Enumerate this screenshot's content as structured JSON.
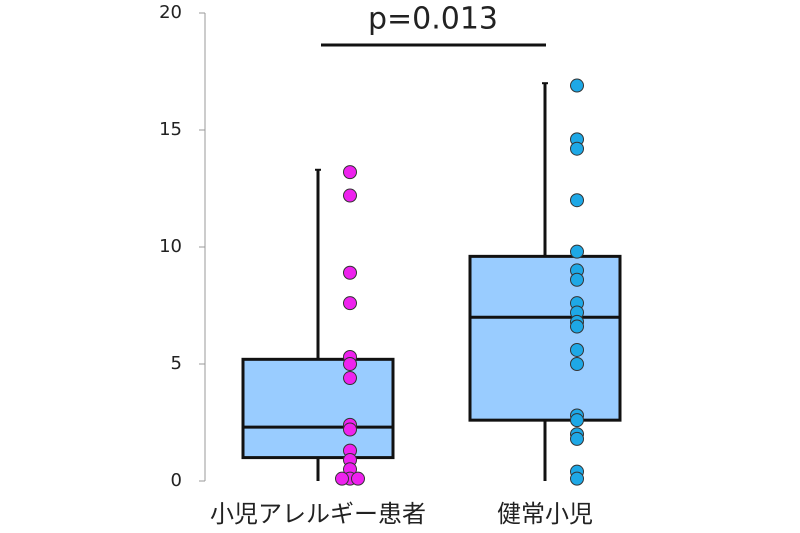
{
  "chart_data": {
    "type": "box",
    "categories": [
      "小児アレルギー患者",
      "健常小児"
    ],
    "annotation": "p=0.013",
    "box_color": "#99ccff",
    "boxes": [
      {
        "whisker_low": 0,
        "q1": 1.0,
        "median": 2.3,
        "q3": 5.2,
        "whisker_high": 13.3
      },
      {
        "whisker_low": 0,
        "q1": 2.6,
        "median": 7.0,
        "q3": 9.6,
        "whisker_high": 17.0
      }
    ],
    "point_colors": [
      "#ee22ee",
      "#1ea8e6"
    ],
    "points": [
      [
        13.2,
        12.2,
        8.9,
        7.6,
        5.3,
        5.0,
        4.4,
        2.4,
        2.2,
        1.3,
        0.9,
        0.5,
        0.1,
        0.1,
        0.1
      ],
      [
        16.9,
        14.6,
        14.2,
        12.0,
        9.8,
        9.0,
        8.6,
        7.6,
        7.2,
        6.8,
        6.6,
        5.6,
        5.0,
        2.8,
        2.6,
        2.0,
        1.8,
        0.4,
        0.1
      ]
    ],
    "ylim": [
      0,
      20
    ],
    "yticks": [
      0,
      5,
      10,
      15,
      20
    ]
  }
}
